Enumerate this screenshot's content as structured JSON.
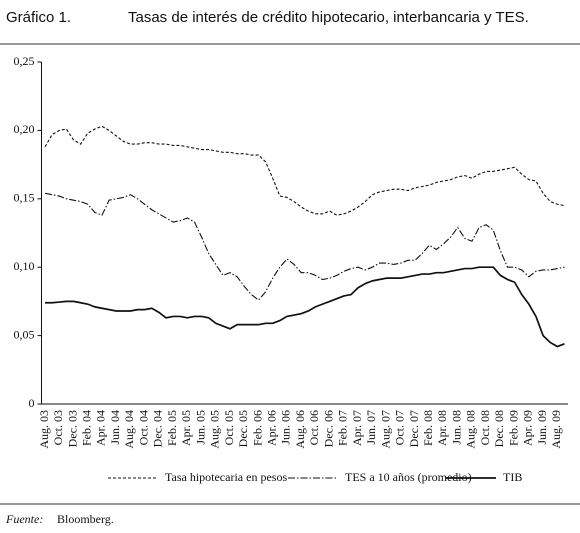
{
  "chart_data": {
    "type": "line",
    "figure_label": "Gráfico 1.",
    "title": "Tasas de interés de crédito hipotecario, interbancaria y TES.",
    "source_label": "Fuente:",
    "source": "Bloomberg.",
    "categories": [
      "Aug. 03",
      null,
      "Oct. 03",
      null,
      "Dec. 03",
      null,
      "Feb. 04",
      null,
      "Apr. 04",
      null,
      "Jun. 04",
      null,
      "Aug. 04",
      null,
      "Oct. 04",
      null,
      "Dec. 04",
      null,
      "Feb. 05",
      null,
      "Apr. 05",
      null,
      "Jun. 05",
      null,
      "Aug. 05",
      null,
      "Oct. 05",
      null,
      "Dec. 05",
      null,
      "Feb. 06",
      null,
      "Apr. 06",
      null,
      "Jun. 06",
      null,
      "Aug. 06",
      null,
      "Oct. 06",
      null,
      "Dec. 06",
      null,
      "Feb. 07",
      null,
      "Apr. 07",
      null,
      "Jun. 07",
      null,
      "Aug. 07",
      null,
      "Oct. 07",
      null,
      "Dec. 07",
      null,
      "Feb. 08",
      null,
      "Apr. 08",
      null,
      "Jun. 08",
      null,
      "Aug. 08",
      null,
      "Oct. 08",
      null,
      "Dec. 08",
      null,
      "Feb. 09",
      null,
      "Apr. 09",
      null,
      "Jun. 09",
      null,
      "Aug. 09",
      null
    ],
    "series": [
      {
        "name": "Tasa hipotecaria en pesos",
        "color": "#111111",
        "dash": "dashed",
        "values": [
          0.188,
          0.197,
          0.2,
          0.201,
          0.193,
          0.19,
          0.198,
          0.201,
          0.203,
          0.2,
          0.196,
          0.192,
          0.19,
          0.19,
          0.191,
          0.191,
          0.19,
          0.19,
          0.189,
          0.189,
          0.188,
          0.187,
          0.186,
          0.186,
          0.185,
          0.184,
          0.184,
          0.183,
          0.183,
          0.182,
          0.182,
          0.177,
          0.165,
          0.152,
          0.151,
          0.148,
          0.144,
          0.141,
          0.139,
          0.139,
          0.141,
          0.138,
          0.139,
          0.141,
          0.144,
          0.148,
          0.153,
          0.155,
          0.156,
          0.157,
          0.157,
          0.156,
          0.158,
          0.159,
          0.16,
          0.162,
          0.163,
          0.164,
          0.166,
          0.167,
          0.165,
          0.168,
          0.17,
          0.17,
          0.171,
          0.172,
          0.173,
          0.168,
          0.164,
          0.163,
          0.154,
          0.148,
          0.146,
          0.145
        ]
      },
      {
        "name": "TES a 10 años (promedio)",
        "color": "#111111",
        "dash": "dashdot",
        "values": [
          0.154,
          0.153,
          0.152,
          0.15,
          0.149,
          0.148,
          0.146,
          0.14,
          0.138,
          0.149,
          0.15,
          0.151,
          0.153,
          0.15,
          0.146,
          0.142,
          0.139,
          0.136,
          0.133,
          0.134,
          0.136,
          0.133,
          0.122,
          0.11,
          0.102,
          0.094,
          0.096,
          0.093,
          0.086,
          0.08,
          0.076,
          0.082,
          0.092,
          0.1,
          0.106,
          0.102,
          0.096,
          0.096,
          0.094,
          0.091,
          0.092,
          0.094,
          0.097,
          0.099,
          0.1,
          0.098,
          0.1,
          0.103,
          0.103,
          0.102,
          0.103,
          0.105,
          0.105,
          0.11,
          0.116,
          0.113,
          0.117,
          0.122,
          0.129,
          0.121,
          0.119,
          0.129,
          0.131,
          0.127,
          0.112,
          0.1,
          0.1,
          0.098,
          0.093,
          0.097,
          0.098,
          0.098,
          0.099,
          0.1
        ]
      },
      {
        "name": "TIB",
        "color": "#111111",
        "dash": "solid",
        "values": [
          0.074,
          0.074,
          0.0745,
          0.075,
          0.075,
          0.074,
          0.073,
          0.071,
          0.07,
          0.069,
          0.068,
          0.068,
          0.068,
          0.069,
          0.069,
          0.07,
          0.067,
          0.063,
          0.064,
          0.064,
          0.063,
          0.064,
          0.064,
          0.063,
          0.059,
          0.057,
          0.055,
          0.058,
          0.058,
          0.058,
          0.058,
          0.059,
          0.059,
          0.061,
          0.064,
          0.065,
          0.066,
          0.068,
          0.071,
          0.073,
          0.075,
          0.077,
          0.079,
          0.08,
          0.085,
          0.088,
          0.09,
          0.091,
          0.092,
          0.092,
          0.092,
          0.093,
          0.094,
          0.095,
          0.095,
          0.096,
          0.096,
          0.097,
          0.098,
          0.099,
          0.099,
          0.1,
          0.1,
          0.1,
          0.094,
          0.091,
          0.089,
          0.08,
          0.073,
          0.064,
          0.05,
          0.045,
          0.042,
          0.044
        ]
      }
    ],
    "ylim": [
      0,
      0.25
    ],
    "yticks": [
      0,
      {
        "value": 0.05,
        "label": "0,05"
      },
      {
        "value": 0.1,
        "label": "0,10"
      },
      {
        "value": 0.15,
        "label": "0,15"
      },
      {
        "value": 0.2,
        "label": "0,20"
      },
      {
        "value": 0.25,
        "label": "0,25"
      }
    ],
    "grid": false,
    "legend": "bottom"
  }
}
